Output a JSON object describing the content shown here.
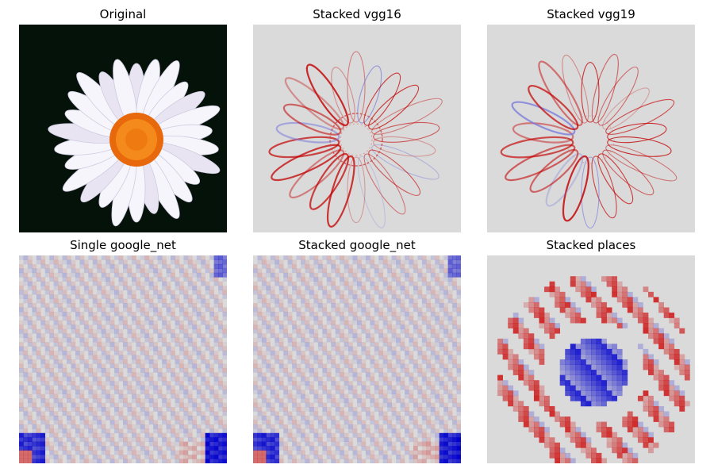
{
  "panels": [
    {
      "title": "Original"
    },
    {
      "title": "Stacked vgg16"
    },
    {
      "title": "Stacked vgg19"
    },
    {
      "title": "Single google_net"
    },
    {
      "title": "Stacked google_net"
    },
    {
      "title": "Stacked places"
    }
  ],
  "colors": {
    "background_gray": "#dadada",
    "positive_red": "#cc0000",
    "negative_blue": "#0000cc",
    "petal_white": "#f4f2fa",
    "flower_center": "#f07a12",
    "photo_background": "#05120a"
  }
}
